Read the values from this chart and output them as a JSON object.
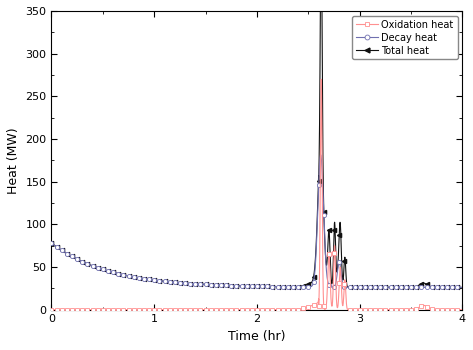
{
  "title": "",
  "xlabel": "Time (hr)",
  "ylabel": "Heat (MW)",
  "xlim": [
    0,
    4
  ],
  "ylim": [
    0,
    350
  ],
  "xticks": [
    0,
    1,
    2,
    3,
    4
  ],
  "yticks": [
    0,
    50,
    100,
    150,
    200,
    250,
    300,
    350
  ],
  "legend_labels": [
    "Oxidation heat",
    "Decay heat",
    "Total heat"
  ],
  "oxidation_color": "#FF9090",
  "decay_color": "#7070B0",
  "total_color": "#101010",
  "marker_size": 3,
  "linewidth": 0.8,
  "figsize": [
    4.73,
    3.5
  ],
  "dpi": 100
}
